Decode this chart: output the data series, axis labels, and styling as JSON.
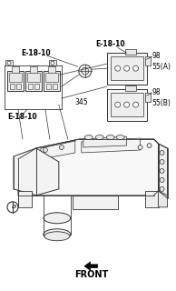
{
  "background_color": "#ffffff",
  "line_color": "#333333",
  "labels": {
    "E18_10_top_left": "E-18-10",
    "E18_10_top_right": "E-18-10",
    "E18_10_bottom_left": "E-18-10",
    "label_98_top": "98",
    "label_55A": "55(A)",
    "label_345": "345",
    "label_98_bot": "98",
    "label_55B": "55(B)",
    "label_front": "FRONT"
  },
  "font_size_label": 5.5,
  "font_size_front": 7.0
}
